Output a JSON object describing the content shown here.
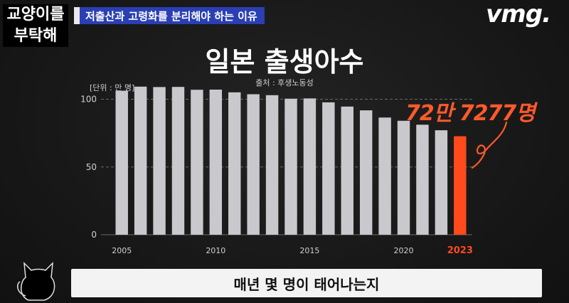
{
  "channel": {
    "line1": "교양이를",
    "line2": "부탁해"
  },
  "topic_badge": "저출산과 고령화를 분리해야 하는 이유",
  "brand": "vmg.",
  "header": {
    "title": "일본 출생아수",
    "source": "출처 : 후생노동성",
    "unit": "[단위 : 만 명]"
  },
  "callout": "72만 7277명",
  "subtitle": "매년 몇 명이 태어나는지",
  "colors": {
    "bar": "#c9c9cd",
    "highlight": "#ff4a1c",
    "topic_bg": "#2a3fb3"
  },
  "chart_data": {
    "type": "bar",
    "title": "일본 출생아수",
    "ylabel": "[단위 : 만 명]",
    "ylim": [
      0,
      105
    ],
    "yticks": [
      0,
      50,
      100
    ],
    "categories": [
      "2005",
      "2006",
      "2007",
      "2008",
      "2009",
      "2010",
      "2011",
      "2012",
      "2013",
      "2014",
      "2015",
      "2016",
      "2017",
      "2018",
      "2019",
      "2020",
      "2021",
      "2022",
      "2023"
    ],
    "xtick_labels": [
      "2005",
      "2010",
      "2015",
      "2020",
      "2023"
    ],
    "values": [
      106.3,
      109.3,
      109.0,
      109.1,
      107.0,
      107.1,
      105.1,
      103.7,
      103.0,
      100.4,
      100.6,
      97.7,
      94.6,
      91.8,
      86.5,
      84.1,
      81.2,
      77.1,
      72.7
    ],
    "highlight_category": "2023",
    "highlight_color": "#ff4a1c",
    "grid": true
  }
}
